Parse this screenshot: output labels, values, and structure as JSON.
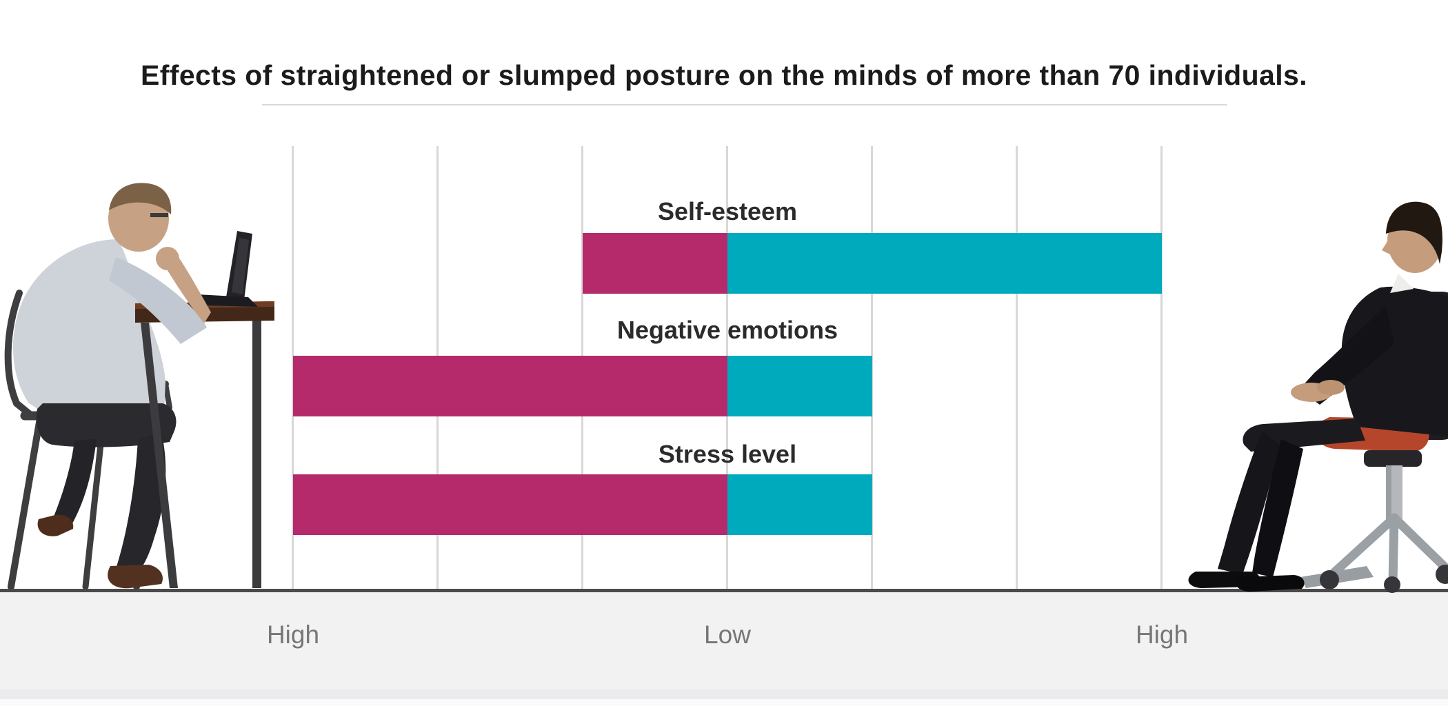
{
  "title": "Effects of straightened or slumped posture on the minds of more than 70 individuals.",
  "colors": {
    "slumped_bar": "#b52a6b",
    "straightened_bar": "#00aabd",
    "gridline": "#d8d8d8",
    "baseline": "#4b4b4b",
    "tick_label": "#767676",
    "category_label": "#2b2b2b",
    "title_text": "#1b1b1b",
    "footer_bg": "#f2f2f3"
  },
  "chart_data": {
    "type": "bar",
    "variant": "horizontal-diverging",
    "title": "Effects of straightened or slumped posture on the minds of more than 70 individuals.",
    "categories": [
      "Self-esteem",
      "Negative emotions",
      "Stress level"
    ],
    "series": [
      {
        "name": "Slumped posture",
        "direction": "left-of-center",
        "color": "#b52a6b",
        "values": [
          1,
          3,
          3
        ]
      },
      {
        "name": "Straightened posture",
        "direction": "right-of-center",
        "color": "#00aabd",
        "values": [
          3,
          1,
          1
        ]
      }
    ],
    "units_per_side": 3,
    "x_tick_labels": [
      "High",
      "Low",
      "High"
    ],
    "x_tick_positions_units": [
      -3,
      0,
      3
    ],
    "gridlines": 7,
    "legend": "none",
    "notes": "Center of axis = Low, both outer ends = High. Values are bar extents measured in gridline units from the center line (1 unit = 1 gridline spacing)."
  },
  "figures": {
    "left_alt": "Man slumped over a laptop at a desk",
    "right_alt": "Man sitting upright in an office chair"
  }
}
